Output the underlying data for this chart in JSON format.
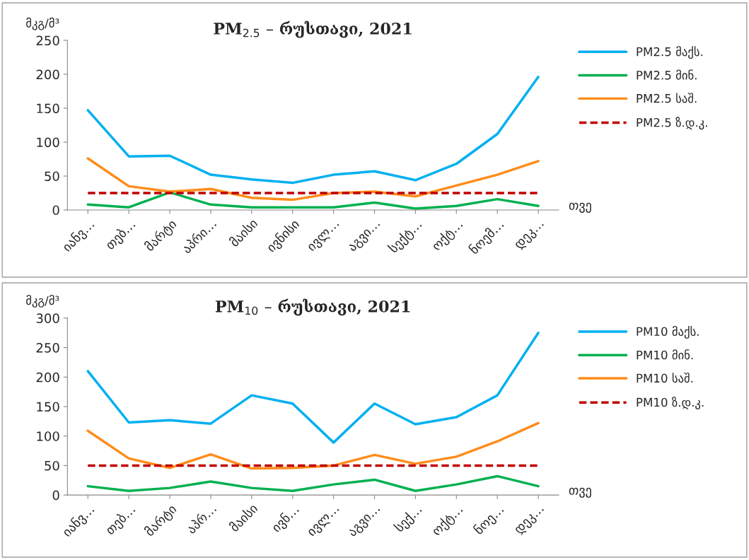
{
  "chart_data": [
    {
      "type": "line",
      "title": "PM$_{2.5}$ – რუსთავი, 2021",
      "ylabel": "მკგ/მ³",
      "xlabel": "თვე",
      "categories": [
        "იანვ…",
        "თებ…",
        "მარტი",
        "აპრი…",
        "მაისი",
        "ივნისი",
        "ივლ…",
        "აგვი…",
        "სექტ…",
        "ოქტ…",
        "ნოემ…",
        "დეკ…"
      ],
      "series": [
        {
          "name": "PM2.5 მაქს.",
          "color": "#00b0f0",
          "values": [
            147,
            79,
            80,
            52,
            45,
            40,
            52,
            57,
            44,
            68,
            112,
            196
          ]
        },
        {
          "name": "PM2.5 მინ.",
          "color": "#00b050",
          "values": [
            8,
            4,
            26,
            8,
            4,
            4,
            4,
            11,
            2,
            6,
            16,
            6
          ]
        },
        {
          "name": "PM2.5 საშ.",
          "color": "#ff8c1a",
          "values": [
            76,
            35,
            27,
            31,
            18,
            15,
            25,
            27,
            20,
            36,
            52,
            72
          ]
        },
        {
          "name": "PM2.5 ზ.დ.კ.",
          "color": "#c00000",
          "line_style": "dashed",
          "values": [
            25,
            25,
            25,
            25,
            25,
            25,
            25,
            25,
            25,
            25,
            25,
            25
          ]
        }
      ],
      "ylim": [
        0,
        250
      ],
      "yticks": [
        0,
        50,
        100,
        150,
        200,
        250
      ],
      "grid": false,
      "legend": "right",
      "marker": "none"
    },
    {
      "type": "line",
      "title": "PM$_{10}$ – რუსთავი, 2021",
      "ylabel": "მკგ/მ³",
      "xlabel": "თვე",
      "categories": [
        "იანვ…",
        "თებ…",
        "მარტი",
        "აპრ…",
        "მაისი",
        "ივნ…",
        "ივლ…",
        "აგვი…",
        "სექ…",
        "ოქტ…",
        "ნოე…",
        "დეკ…"
      ],
      "series": [
        {
          "name": "PM10 მაქს.",
          "color": "#00b0f0",
          "values": [
            210,
            123,
            127,
            121,
            169,
            155,
            89,
            155,
            120,
            132,
            169,
            275
          ]
        },
        {
          "name": "PM10 მინ.",
          "color": "#00b050",
          "values": [
            15,
            7,
            12,
            23,
            12,
            7,
            18,
            26,
            7,
            18,
            32,
            15
          ]
        },
        {
          "name": "PM10 საშ.",
          "color": "#ff8c1a",
          "values": [
            109,
            62,
            46,
            69,
            45,
            46,
            50,
            68,
            53,
            65,
            91,
            122
          ]
        },
        {
          "name": "PM10 ზ.დ.კ.",
          "color": "#c00000",
          "line_style": "dashed",
          "values": [
            50,
            50,
            50,
            50,
            50,
            50,
            50,
            50,
            50,
            50,
            50,
            50
          ]
        }
      ],
      "ylim": [
        0,
        300
      ],
      "yticks": [
        0,
        50,
        100,
        150,
        200,
        250,
        300
      ],
      "grid": false,
      "legend": "right",
      "marker": "none"
    }
  ]
}
